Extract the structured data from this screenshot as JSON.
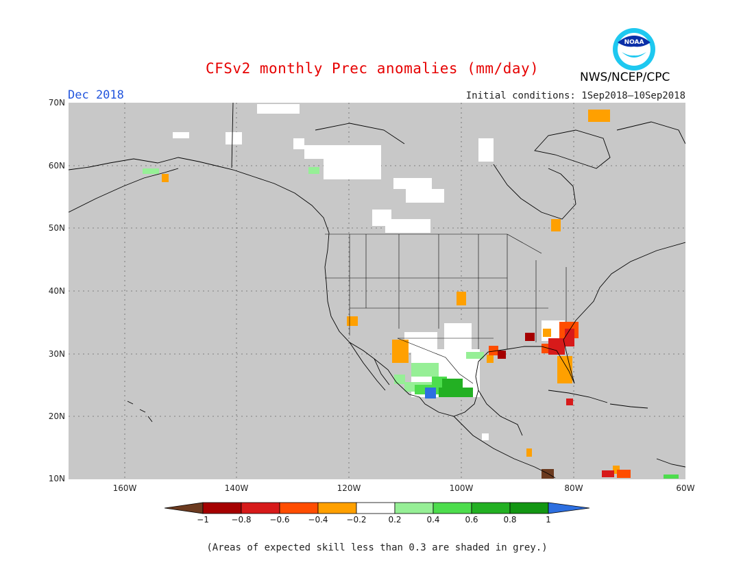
{
  "header": {
    "title": "CFSv2 monthly Prec anomalies (mm/day)",
    "month": "Dec 2018",
    "initial_conditions": "Initial conditions: 1Sep2018—10Sep2018",
    "agency": "NWS/NCEP/CPC",
    "logo_text": "NOAA"
  },
  "axes": {
    "lat_labels": [
      "70N",
      "60N",
      "50N",
      "40N",
      "30N",
      "20N",
      "10N"
    ],
    "lon_labels": [
      "160W",
      "140W",
      "120W",
      "100W",
      "80W",
      "60W"
    ]
  },
  "colorbar": {
    "labels": [
      "−1",
      "−0.8",
      "−0.6",
      "−0.4",
      "−0.2",
      "0.2",
      "0.4",
      "0.6",
      "0.8",
      "1"
    ],
    "colors": [
      "#6b3a1f",
      "#a50000",
      "#d71a1a",
      "#ff4d00",
      "#ffa000",
      "#ffffff",
      "#96ef96",
      "#4ddd4d",
      "#23b023",
      "#139613",
      "#2d6fe0"
    ]
  },
  "map": {
    "background": "#c8c8c8",
    "land_outline": "#000000"
  },
  "footnote": "(Areas of expected skill less than 0.3 are shaded in grey.)"
}
